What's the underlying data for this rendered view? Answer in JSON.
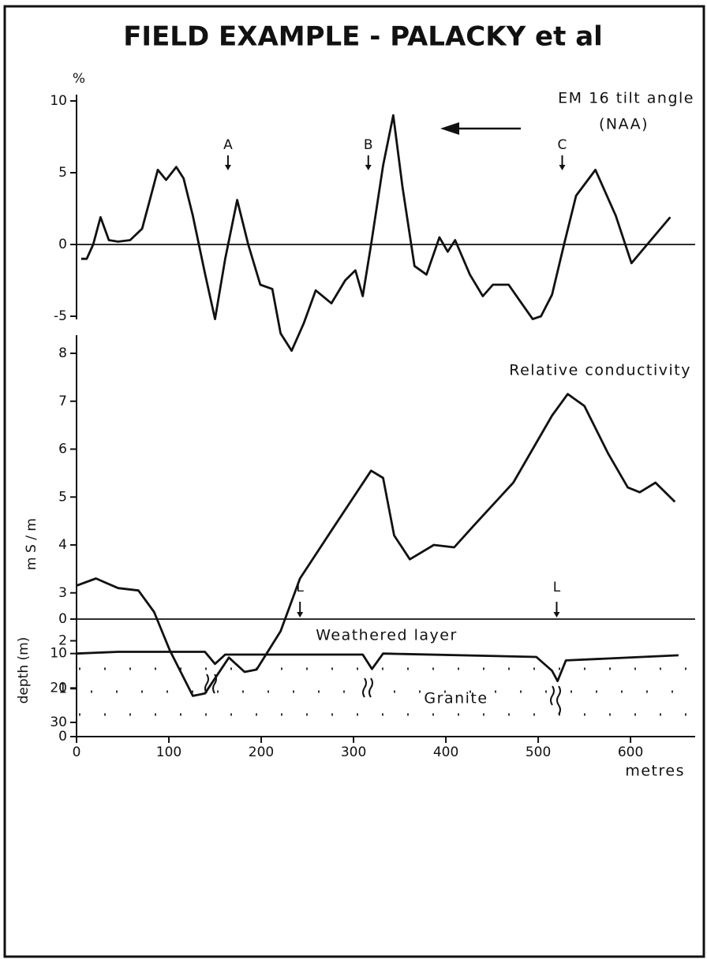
{
  "title": "FIELD EXAMPLE - PALACKY et al",
  "chart_data": [
    {
      "type": "line",
      "y_label": "%",
      "annotations": [
        "EM 16 tilt angle",
        "(NAA)"
      ],
      "markers": [
        {
          "label": "A",
          "x": 164
        },
        {
          "label": "B",
          "x": 316
        },
        {
          "label": "C",
          "x": 526
        }
      ],
      "x": [
        5,
        11,
        18,
        26,
        35,
        45,
        58,
        71,
        79,
        88,
        97,
        108,
        116,
        126,
        139,
        150,
        161,
        174,
        186,
        199,
        212,
        221,
        233,
        246,
        259,
        276,
        291,
        302,
        310,
        319,
        332,
        343,
        353,
        366,
        379,
        393,
        402,
        410,
        426,
        440,
        451,
        468,
        481,
        494,
        503,
        515,
        528,
        541,
        562,
        584,
        601,
        618,
        643
      ],
      "values": [
        -1.0,
        -1.0,
        0,
        1.9,
        0.3,
        0.2,
        0.3,
        1.1,
        3,
        5.2,
        4.5,
        5.4,
        4.6,
        2,
        -2,
        -5.2,
        -1,
        3.1,
        0,
        -2.8,
        -3.1,
        -6.2,
        -7.4,
        -5.5,
        -3.2,
        -4.1,
        -2.5,
        -1.8,
        -3.6,
        0,
        5.5,
        9.0,
        4,
        -1.5,
        -2.1,
        0.5,
        -0.5,
        0.3,
        -2.1,
        -3.6,
        -2.8,
        -2.8,
        -4,
        -5.2,
        -5.0,
        -3.5,
        0,
        3.4,
        5.2,
        2,
        -1.3,
        0,
        1.9
      ],
      "color": "#111111",
      "xlim": [
        0,
        670
      ],
      "ylim": [
        -8,
        10
      ],
      "yticks": [
        10,
        5,
        0,
        -5
      ],
      "zero_line": true
    },
    {
      "type": "line",
      "y_label": "m S / m",
      "x_label": "metres",
      "annotations": [
        "Relative conductivity"
      ],
      "x": [
        0,
        21,
        45,
        67,
        84,
        101,
        126,
        139,
        165,
        182,
        195,
        221,
        242,
        276,
        319,
        332,
        344,
        361,
        387,
        409,
        430,
        473,
        515,
        532,
        550,
        576,
        597,
        610,
        627,
        648
      ],
      "values": [
        3.15,
        3.3,
        3.1,
        3.05,
        2.6,
        1.8,
        0.85,
        0.9,
        1.65,
        1.35,
        1.4,
        2.2,
        3.3,
        4.3,
        5.55,
        5.4,
        4.2,
        3.7,
        4.0,
        3.95,
        4.4,
        5.3,
        6.7,
        7.15,
        6.9,
        5.9,
        5.2,
        5.1,
        5.3,
        4.9
      ],
      "color": "#111111",
      "xlim": [
        0,
        670
      ],
      "ylim": [
        0,
        8
      ],
      "yticks": [
        0,
        1,
        2,
        3,
        4,
        5,
        6,
        7,
        8
      ],
      "xticks": [
        0,
        100,
        200,
        300,
        400,
        500,
        600
      ]
    },
    {
      "type": "line",
      "y_label": "depth (m)",
      "annotations": [
        "Weathered layer",
        "Granite"
      ],
      "markers": [
        {
          "label": "L",
          "x": 242
        },
        {
          "label": "L",
          "x": 520
        }
      ],
      "x": [
        0,
        45,
        139,
        150,
        161,
        310,
        320,
        332,
        498,
        515,
        521,
        530,
        652
      ],
      "values": [
        10,
        9.5,
        9.5,
        13,
        10.3,
        10.3,
        14.5,
        10,
        11,
        15,
        18,
        12,
        10.5
      ],
      "color": "#111111",
      "xlim": [
        0,
        670
      ],
      "ylim": [
        30,
        0
      ],
      "yticks": [
        0,
        10,
        20,
        30
      ],
      "zero_line": true
    }
  ]
}
